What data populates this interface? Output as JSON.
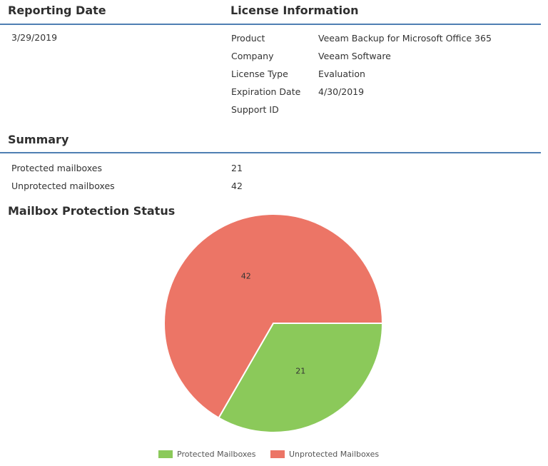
{
  "reporting": {
    "heading": "Reporting Date",
    "date": "3/29/2019"
  },
  "license": {
    "heading": "License Information",
    "rows": [
      {
        "label": "Product",
        "value": "Veeam Backup for Microsoft Office 365"
      },
      {
        "label": "Company",
        "value": "Veeam Software"
      },
      {
        "label": "License Type",
        "value": "Evaluation"
      },
      {
        "label": "Expiration Date",
        "value": "4/30/2019"
      },
      {
        "label": "Support ID",
        "value": ""
      }
    ]
  },
  "summary": {
    "heading": "Summary",
    "rows": [
      {
        "label": "Protected mailboxes",
        "value": "21"
      },
      {
        "label": "Unprotected mailboxes",
        "value": "42"
      }
    ]
  },
  "chart_section": {
    "heading": "Mailbox Protection Status"
  },
  "colors": {
    "header_rule": "#4f7fb3",
    "protected": "#8bc95a",
    "unprotected": "#ec7566"
  },
  "chart_data": {
    "type": "pie",
    "title": "Mailbox Protection Status",
    "slices": [
      {
        "label": "Protected Mailboxes",
        "value": 21,
        "color": "#8bc95a"
      },
      {
        "label": "Unprotected Mailboxes",
        "value": 42,
        "color": "#ec7566"
      }
    ],
    "legend": "bottom"
  }
}
